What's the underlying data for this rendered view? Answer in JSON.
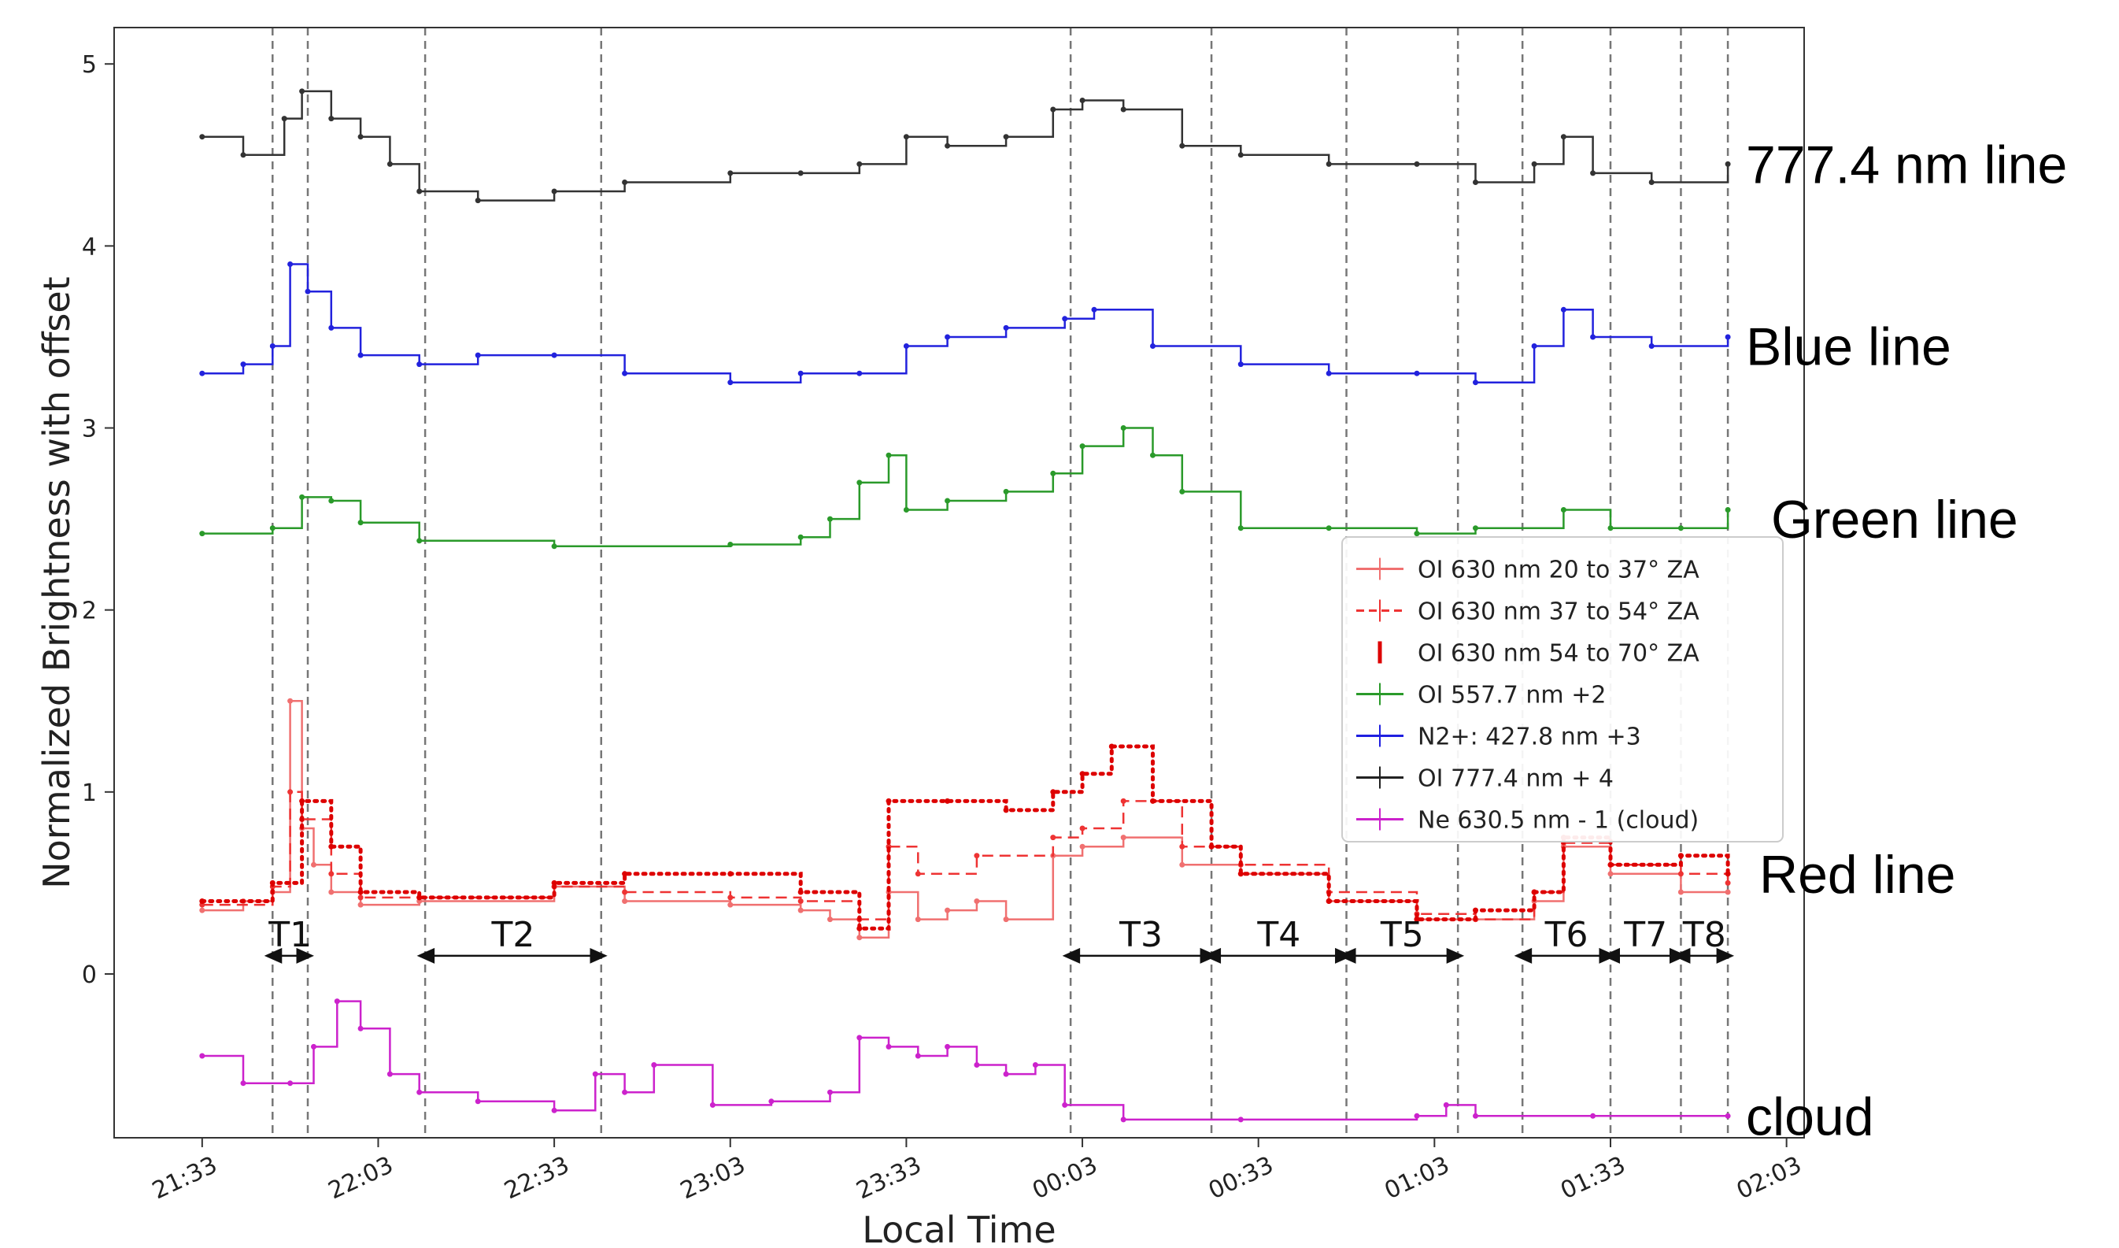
{
  "chart_data": {
    "type": "line",
    "xlabel": "Local Time",
    "ylabel": "Normalized Brightness with offset",
    "x_ticks": [
      "21:33",
      "22:03",
      "22:33",
      "23:03",
      "23:33",
      "00:03",
      "00:33",
      "01:03",
      "01:33",
      "02:03"
    ],
    "y_ticks": [
      "0",
      "1",
      "2",
      "3",
      "4",
      "5"
    ],
    "xlim": [
      "21:18",
      "02:06"
    ],
    "ylim": [
      -0.9,
      5.2
    ],
    "grid": false,
    "legend_position": "center-right",
    "line_labels": [
      {
        "text": "777.4 nm line",
        "y": 4.45
      },
      {
        "text": "Blue line",
        "y": 3.45
      },
      {
        "text": "Green line",
        "y": 2.5
      },
      {
        "text": "Red line",
        "y": 0.55
      },
      {
        "text": "cloud",
        "y": -0.78
      }
    ],
    "boundaries": [
      "21:45",
      "21:51",
      "22:11",
      "22:41",
      "00:01",
      "00:25",
      "00:48",
      "01:07",
      "01:18",
      "01:33",
      "01:45",
      "01:53"
    ],
    "regions": [
      {
        "label": "T1",
        "start": "21:45",
        "end": "21:51"
      },
      {
        "label": "T2",
        "start": "22:11",
        "end": "22:41"
      },
      {
        "label": "T3",
        "start": "00:01",
        "end": "00:25"
      },
      {
        "label": "T4",
        "start": "00:25",
        "end": "00:48"
      },
      {
        "label": "T5",
        "start": "00:48",
        "end": "01:07"
      },
      {
        "label": "T6",
        "start": "01:18",
        "end": "01:33"
      },
      {
        "label": "T7",
        "start": "01:33",
        "end": "01:45"
      },
      {
        "label": "T8",
        "start": "01:45",
        "end": "01:53"
      }
    ],
    "legend": [
      {
        "label": "OI 630 nm 20 to 37° ZA",
        "color": "#f07070",
        "style": "solid"
      },
      {
        "label": "OI 630 nm 37 to 54° ZA",
        "color": "#ee3333",
        "style": "dashed"
      },
      {
        "label": "OI 630 nm 54 to 70° ZA",
        "color": "#dd0000",
        "style": "dotted"
      },
      {
        "label": "OI 557.7 nm +2",
        "color": "#2a9a2a",
        "style": "solid"
      },
      {
        "label": "N2+: 427.8 nm +3",
        "color": "#2020e0",
        "style": "solid"
      },
      {
        "label": "OI 777.4 nm + 4",
        "color": "#222222",
        "style": "solid"
      },
      {
        "label": "Ne 630.5 nm - 1 (cloud)",
        "color": "#cc22cc",
        "style": "solid"
      }
    ],
    "series": [
      {
        "name": "OI 777.4 nm + 4",
        "color": "#333333",
        "x": [
          "21:33",
          "21:40",
          "21:47",
          "21:50",
          "21:55",
          "22:00",
          "22:05",
          "22:10",
          "22:20",
          "22:33",
          "22:45",
          "23:03",
          "23:15",
          "23:25",
          "23:33",
          "23:40",
          "23:50",
          "23:58",
          "00:03",
          "00:10",
          "00:20",
          "00:30",
          "00:45",
          "01:00",
          "01:10",
          "01:20",
          "01:25",
          "01:30",
          "01:40",
          "01:53"
        ],
        "y": [
          4.6,
          4.5,
          4.7,
          4.85,
          4.7,
          4.6,
          4.45,
          4.3,
          4.25,
          4.3,
          4.35,
          4.4,
          4.4,
          4.45,
          4.6,
          4.55,
          4.6,
          4.75,
          4.8,
          4.75,
          4.55,
          4.5,
          4.45,
          4.45,
          4.35,
          4.45,
          4.6,
          4.4,
          4.35,
          4.45
        ]
      },
      {
        "name": "N2+: 427.8 nm +3",
        "color": "#2222dd",
        "x": [
          "21:33",
          "21:40",
          "21:45",
          "21:48",
          "21:51",
          "21:55",
          "22:00",
          "22:10",
          "22:20",
          "22:33",
          "22:45",
          "23:03",
          "23:15",
          "23:25",
          "23:33",
          "23:40",
          "23:50",
          "00:00",
          "00:05",
          "00:15",
          "00:30",
          "00:45",
          "01:00",
          "01:10",
          "01:20",
          "01:25",
          "01:30",
          "01:40",
          "01:53"
        ],
        "y": [
          3.3,
          3.35,
          3.45,
          3.9,
          3.75,
          3.55,
          3.4,
          3.35,
          3.4,
          3.4,
          3.3,
          3.25,
          3.3,
          3.3,
          3.45,
          3.5,
          3.55,
          3.6,
          3.65,
          3.45,
          3.35,
          3.3,
          3.3,
          3.25,
          3.45,
          3.65,
          3.5,
          3.45,
          3.5
        ]
      },
      {
        "name": "OI 557.7 nm +2",
        "color": "#2a9a2a",
        "x": [
          "21:33",
          "21:45",
          "21:50",
          "21:55",
          "22:00",
          "22:10",
          "22:33",
          "23:03",
          "23:15",
          "23:20",
          "23:25",
          "23:30",
          "23:33",
          "23:40",
          "23:50",
          "23:58",
          "00:03",
          "00:10",
          "00:15",
          "00:20",
          "00:30",
          "00:45",
          "01:00",
          "01:10",
          "01:25",
          "01:33",
          "01:45",
          "01:53"
        ],
        "y": [
          2.42,
          2.45,
          2.62,
          2.6,
          2.48,
          2.38,
          2.35,
          2.36,
          2.4,
          2.5,
          2.7,
          2.85,
          2.55,
          2.6,
          2.65,
          2.75,
          2.9,
          3.0,
          2.85,
          2.65,
          2.45,
          2.45,
          2.42,
          2.45,
          2.55,
          2.45,
          2.45,
          2.55
        ]
      },
      {
        "name": "OI 630 nm 20 to 37° ZA",
        "color": "#f07070",
        "x": [
          "21:33",
          "21:40",
          "21:45",
          "21:48",
          "21:50",
          "21:52",
          "21:55",
          "22:00",
          "22:10",
          "22:33",
          "22:45",
          "23:03",
          "23:15",
          "23:20",
          "23:25",
          "23:30",
          "23:35",
          "23:40",
          "23:45",
          "23:50",
          "23:58",
          "00:03",
          "00:10",
          "00:20",
          "00:30",
          "00:45",
          "01:00",
          "01:10",
          "01:20",
          "01:25",
          "01:33",
          "01:45",
          "01:53"
        ],
        "y": [
          0.35,
          0.4,
          0.45,
          1.5,
          0.8,
          0.6,
          0.45,
          0.38,
          0.4,
          0.48,
          0.4,
          0.38,
          0.35,
          0.3,
          0.2,
          0.45,
          0.3,
          0.35,
          0.4,
          0.3,
          0.65,
          0.7,
          0.75,
          0.6,
          0.55,
          0.4,
          0.3,
          0.3,
          0.4,
          0.7,
          0.55,
          0.45,
          0.45
        ]
      },
      {
        "name": "OI 630 nm 37 to 54° ZA",
        "color": "#ee3333",
        "x": [
          "21:33",
          "21:45",
          "21:48",
          "21:50",
          "21:55",
          "22:00",
          "22:10",
          "22:33",
          "22:45",
          "23:03",
          "23:15",
          "23:25",
          "23:30",
          "23:35",
          "23:45",
          "23:58",
          "00:03",
          "00:10",
          "00:20",
          "00:30",
          "00:45",
          "01:00",
          "01:10",
          "01:20",
          "01:25",
          "01:33",
          "01:45",
          "01:53"
        ],
        "y": [
          0.38,
          0.48,
          1.0,
          0.85,
          0.55,
          0.42,
          0.42,
          0.48,
          0.45,
          0.42,
          0.4,
          0.3,
          0.7,
          0.55,
          0.65,
          0.75,
          0.8,
          0.95,
          0.7,
          0.6,
          0.45,
          0.33,
          0.3,
          0.45,
          0.72,
          0.6,
          0.55,
          0.5
        ]
      },
      {
        "name": "OI 630 nm 54 to 70° ZA",
        "color": "#dd0000",
        "x": [
          "21:33",
          "21:45",
          "21:50",
          "21:55",
          "22:00",
          "22:10",
          "22:33",
          "22:45",
          "23:03",
          "23:15",
          "23:25",
          "23:30",
          "23:40",
          "23:50",
          "23:58",
          "00:03",
          "00:08",
          "00:15",
          "00:25",
          "00:30",
          "00:45",
          "01:00",
          "01:10",
          "01:20",
          "01:25",
          "01:33",
          "01:45",
          "01:53"
        ],
        "y": [
          0.4,
          0.5,
          0.95,
          0.7,
          0.45,
          0.42,
          0.5,
          0.55,
          0.55,
          0.45,
          0.25,
          0.95,
          0.95,
          0.9,
          1.0,
          1.1,
          1.25,
          0.95,
          0.7,
          0.55,
          0.4,
          0.3,
          0.35,
          0.45,
          0.75,
          0.6,
          0.65,
          0.55
        ]
      },
      {
        "name": "Ne 630.5 nm - 1 (cloud)",
        "color": "#cc22cc",
        "x": [
          "21:33",
          "21:40",
          "21:48",
          "21:52",
          "21:56",
          "22:00",
          "22:05",
          "22:10",
          "22:20",
          "22:33",
          "22:40",
          "22:45",
          "22:50",
          "23:00",
          "23:10",
          "23:20",
          "23:25",
          "23:30",
          "23:35",
          "23:40",
          "23:45",
          "23:50",
          "23:55",
          "00:00",
          "00:10",
          "00:30",
          "01:00",
          "01:05",
          "01:10",
          "01:30",
          "01:53"
        ],
        "y": [
          -0.45,
          -0.6,
          -0.6,
          -0.4,
          -0.15,
          -0.3,
          -0.55,
          -0.65,
          -0.7,
          -0.75,
          -0.55,
          -0.65,
          -0.5,
          -0.72,
          -0.7,
          -0.65,
          -0.35,
          -0.4,
          -0.45,
          -0.4,
          -0.5,
          -0.55,
          -0.5,
          -0.72,
          -0.8,
          -0.8,
          -0.78,
          -0.72,
          -0.78,
          -0.78,
          -0.78
        ]
      }
    ]
  }
}
